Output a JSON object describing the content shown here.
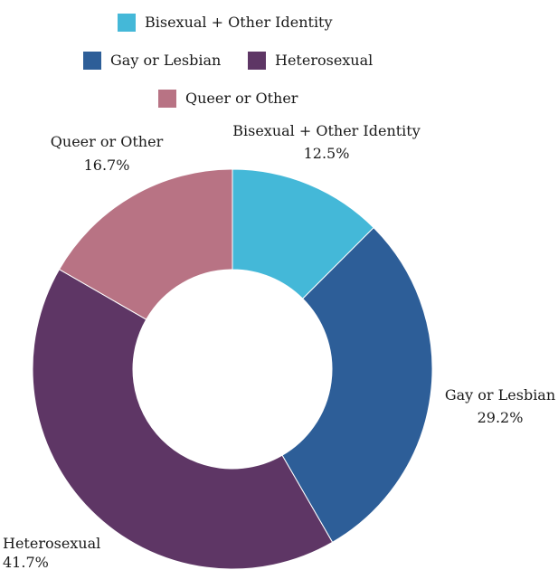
{
  "chart_data": {
    "type": "pie",
    "donut": true,
    "legend_position": "top",
    "slices": [
      {
        "label": "Bisexual + Other Identity",
        "value": 12.5,
        "value_label": "12.5%",
        "color": "#44b8d8"
      },
      {
        "label": "Gay or Lesbian",
        "value": 29.2,
        "value_label": "29.2%",
        "color": "#2d5e98"
      },
      {
        "label": "Heterosexual",
        "value": 41.7,
        "value_label": "41.7%",
        "color": "#5e3665"
      },
      {
        "label": "Queer or Other",
        "value": 16.7,
        "value_label": "16.7%",
        "color": "#b87384"
      }
    ]
  }
}
